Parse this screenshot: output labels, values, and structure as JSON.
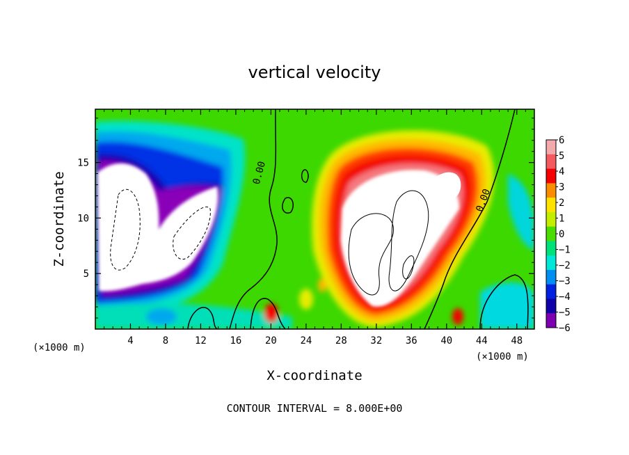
{
  "chart_data": {
    "type": "heatmap",
    "title": "vertical velocity",
    "xlabel": "X-coordinate",
    "ylabel": "Z-coordinate",
    "x_unit_label_left": "(×1000 m)",
    "x_unit_label_right": "(×1000 m)",
    "x_range": [
      0,
      50
    ],
    "y_range": [
      0,
      19.8
    ],
    "x_ticks": [
      4,
      8,
      12,
      16,
      20,
      24,
      28,
      32,
      36,
      40,
      44,
      48
    ],
    "y_ticks": [
      5,
      10,
      15
    ],
    "colorbar": {
      "min": -6,
      "max": 6,
      "tick_labels": [
        "6",
        "5",
        "4",
        "3",
        "2",
        "1",
        "0",
        "−1",
        "−2",
        "−3",
        "−4",
        "−5",
        "−6"
      ],
      "colors": [
        "#f4a9ac",
        "#f45a5f",
        "#f50000",
        "#fa8c00",
        "#ffe200",
        "#c4ee00",
        "#4bdc00",
        "#00e17a",
        "#00e6d7",
        "#008ff0",
        "#0022e0",
        "#1000a8",
        "#7d00b0"
      ]
    },
    "contour_labels": [
      {
        "text": "0.00",
        "x": 19.0,
        "y": 14.0,
        "angle": -75
      },
      {
        "text": "0.00",
        "x": 44.5,
        "y": 11.5,
        "angle": -70
      }
    ],
    "footer": "CONTOUR INTERVAL = 8.000E+00",
    "grid": false,
    "legend": "colorbar-right"
  }
}
